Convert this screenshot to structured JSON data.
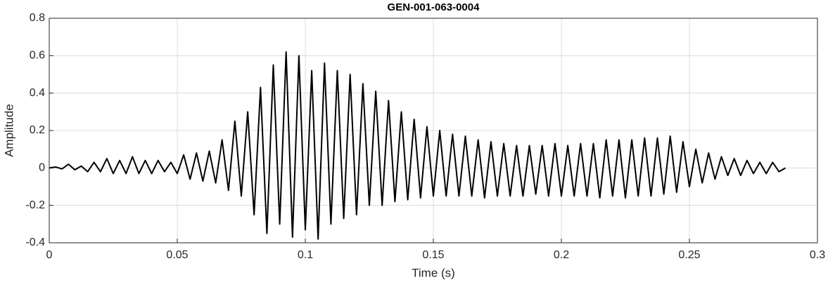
{
  "chart_data": {
    "type": "line",
    "title": "GEN-001-063-0004",
    "x_label": "Time (s)",
    "y_label": "Amplitude",
    "xlim": [
      0,
      0.3
    ],
    "ylim": [
      -0.4,
      0.8
    ],
    "xticks": [
      0,
      0.05,
      0.1,
      0.15,
      0.2,
      0.25,
      0.3
    ],
    "yticks": [
      -0.4,
      -0.2,
      0,
      0.2,
      0.4,
      0.6,
      0.8
    ],
    "grid": true,
    "x": [
      0,
      0.0025,
      0.005,
      0.0075,
      0.01,
      0.0125,
      0.015,
      0.0175,
      0.02,
      0.0225,
      0.025,
      0.0275,
      0.03,
      0.0325,
      0.035,
      0.0375,
      0.04,
      0.0425,
      0.045,
      0.0475,
      0.05,
      0.0525,
      0.055,
      0.0575,
      0.06,
      0.0625,
      0.065,
      0.0675,
      0.07,
      0.0725,
      0.075,
      0.0775,
      0.08,
      0.0825,
      0.085,
      0.0875,
      0.09,
      0.0925,
      0.095,
      0.0975,
      0.1,
      0.1025,
      0.105,
      0.1075,
      0.11,
      0.1125,
      0.115,
      0.1175,
      0.12,
      0.1225,
      0.125,
      0.1275,
      0.13,
      0.1325,
      0.135,
      0.1375,
      0.14,
      0.1425,
      0.145,
      0.1475,
      0.15,
      0.1525,
      0.155,
      0.1575,
      0.16,
      0.1625,
      0.165,
      0.1675,
      0.17,
      0.1725,
      0.175,
      0.1775,
      0.18,
      0.1825,
      0.185,
      0.1875,
      0.19,
      0.1925,
      0.195,
      0.1975,
      0.2,
      0.2025,
      0.205,
      0.2075,
      0.21,
      0.2125,
      0.215,
      0.2175,
      0.22,
      0.2225,
      0.225,
      0.2275,
      0.23,
      0.2325,
      0.235,
      0.2375,
      0.24,
      0.2425,
      0.245,
      0.2475,
      0.25,
      0.2525,
      0.255,
      0.2575,
      0.26,
      0.2625,
      0.265,
      0.2675,
      0.27,
      0.2725,
      0.275,
      0.2775,
      0.28,
      0.2825,
      0.285,
      0.2875
    ],
    "series": [
      {
        "color": "#000000",
        "values": [
          0,
          0.005,
          -0.005,
          0.02,
          -0.01,
          0.01,
          -0.02,
          0.03,
          -0.02,
          0.05,
          -0.03,
          0.04,
          -0.03,
          0.06,
          -0.03,
          0.04,
          -0.03,
          0.04,
          -0.02,
          0.03,
          -0.03,
          0.07,
          -0.06,
          0.08,
          -0.07,
          0.09,
          -0.08,
          0.15,
          -0.12,
          0.25,
          -0.15,
          0.3,
          -0.25,
          0.43,
          -0.35,
          0.55,
          -0.3,
          0.62,
          -0.37,
          0.6,
          -0.33,
          0.52,
          -0.38,
          0.56,
          -0.3,
          0.52,
          -0.27,
          0.5,
          -0.25,
          0.45,
          -0.2,
          0.41,
          -0.2,
          0.36,
          -0.18,
          0.3,
          -0.17,
          0.26,
          -0.16,
          0.22,
          -0.15,
          0.2,
          -0.15,
          0.18,
          -0.15,
          0.17,
          -0.15,
          0.15,
          -0.16,
          0.14,
          -0.15,
          0.13,
          -0.15,
          0.12,
          -0.15,
          0.12,
          -0.14,
          0.12,
          -0.15,
          0.13,
          -0.15,
          0.12,
          -0.15,
          0.13,
          -0.15,
          0.13,
          -0.16,
          0.15,
          -0.15,
          0.15,
          -0.16,
          0.15,
          -0.15,
          0.16,
          -0.15,
          0.16,
          -0.14,
          0.17,
          -0.13,
          0.14,
          -0.1,
          0.1,
          -0.08,
          0.08,
          -0.06,
          0.06,
          -0.04,
          0.05,
          -0.04,
          0.04,
          -0.03,
          0.03,
          -0.03,
          0.03,
          -0.02,
          0
        ]
      }
    ]
  }
}
